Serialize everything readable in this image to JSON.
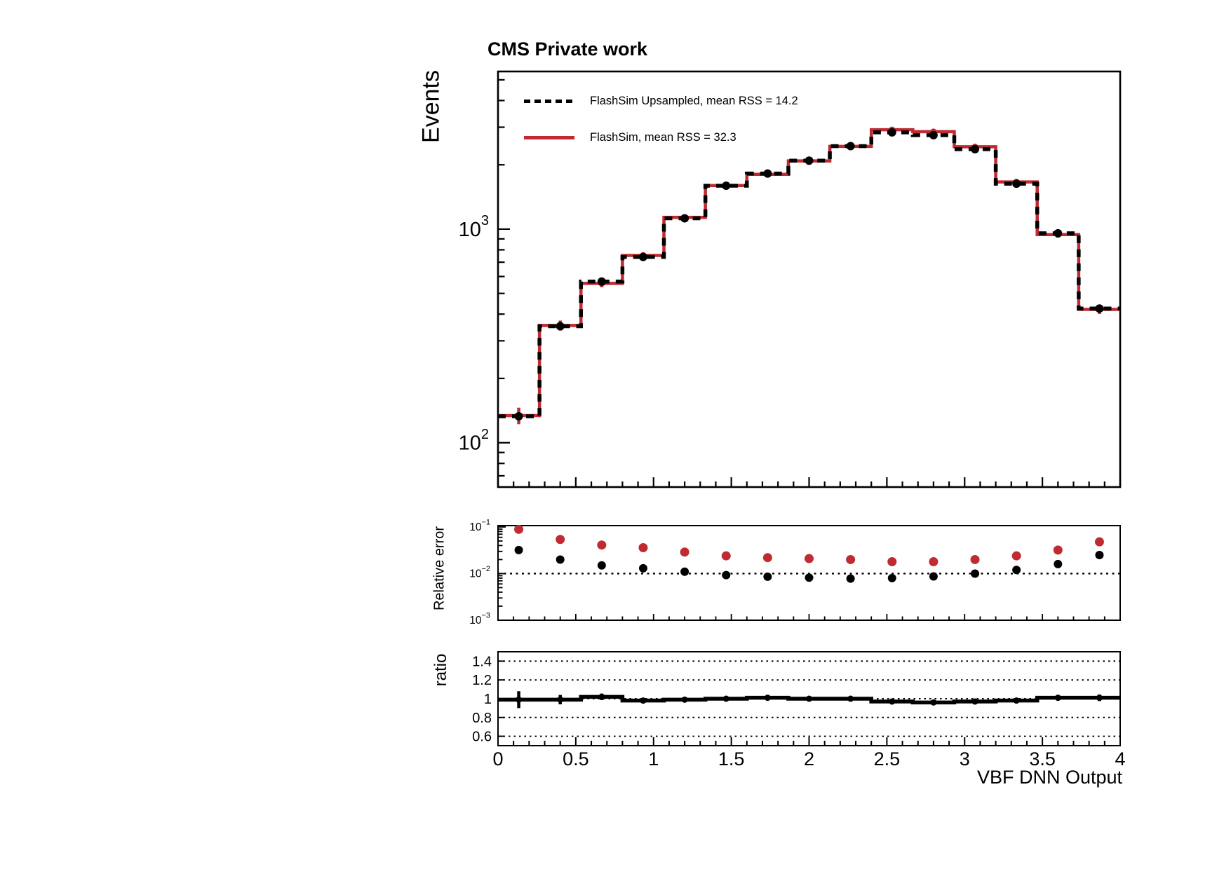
{
  "title": "CMS Private work",
  "colors": {
    "red": "#bf2b31",
    "black": "#000000"
  },
  "legend": {
    "items": [
      {
        "label": "FlashSim Upsampled, mean RSS = 14.2",
        "style": "dashed",
        "color": "#000000"
      },
      {
        "label": "FlashSim, mean RSS = 32.3",
        "style": "solid",
        "color": "#bf2b31"
      }
    ]
  },
  "axis_titles": {
    "main_y": "Events",
    "mid_y": "Relative error",
    "ratio_y": "ratio",
    "x": "VBF DNN Output"
  },
  "x_axis": {
    "min": 0,
    "max": 4,
    "major_ticks": [
      0,
      0.5,
      1,
      1.5,
      2,
      2.5,
      3,
      3.5,
      4
    ],
    "major_labels": [
      "0",
      "0.5",
      "1",
      "1.5",
      "2",
      "2.5",
      "3",
      "3.5",
      "4"
    ],
    "minor_step": 0.1
  },
  "chart_data": [
    {
      "type": "line",
      "title": "CMS Private work",
      "ylabel": "Events",
      "yscale": "log",
      "ylim": [
        62,
        5470
      ],
      "xlim": [
        0,
        4
      ],
      "n_bins": 15,
      "bin_centers": [
        0.1333,
        0.4,
        0.6667,
        0.9333,
        1.2,
        1.4667,
        1.7333,
        2.0,
        2.2667,
        2.5333,
        2.8,
        3.0667,
        3.3333,
        3.6,
        3.8667
      ],
      "y_labeled_exponents": [
        2,
        3
      ],
      "legend_position": "top-left-inside",
      "grid": false,
      "series": [
        {
          "name": "FlashSim, mean RSS = 32.3",
          "color": "#bf2b31",
          "line": "solid",
          "values": [
            134,
            354,
            557,
            753,
            1135,
            1600,
            1805,
            2085,
            2440,
            2920,
            2860,
            2430,
            1663,
            943,
            421
          ],
          "rel_err": [
            0.089,
            0.054,
            0.041,
            0.036,
            0.029,
            0.024,
            0.022,
            0.021,
            0.02,
            0.018,
            0.018,
            0.02,
            0.024,
            0.032,
            0.048
          ]
        },
        {
          "name": "FlashSim Upsampled, mean RSS = 14.2",
          "color": "#000000",
          "line": "dashed",
          "values": [
            133,
            351,
            568,
            741,
            1124,
            1597,
            1820,
            2092,
            2447,
            2838,
            2752,
            2368,
            1632,
            956,
            425
          ],
          "rel_err": [
            0.032,
            0.02,
            0.015,
            0.013,
            0.011,
            0.0093,
            0.0086,
            0.0082,
            0.0078,
            0.008,
            0.0087,
            0.01,
            0.012,
            0.016,
            0.025
          ]
        }
      ]
    },
    {
      "type": "scatter",
      "ylabel": "Relative error",
      "yscale": "log",
      "ylim": [
        0.001,
        0.107
      ],
      "xlim": [
        0,
        4
      ],
      "y_labeled_exponents": [
        -1,
        -2,
        -3
      ],
      "dotted_line_y": 0.01,
      "series": [
        {
          "name": "FlashSim",
          "color": "#bf2b31",
          "values": [
            0.089,
            0.054,
            0.041,
            0.036,
            0.029,
            0.024,
            0.022,
            0.021,
            0.02,
            0.018,
            0.018,
            0.02,
            0.024,
            0.032,
            0.048
          ]
        },
        {
          "name": "FlashSim Upsampled",
          "color": "#000000",
          "values": [
            0.032,
            0.02,
            0.015,
            0.013,
            0.011,
            0.0093,
            0.0086,
            0.0082,
            0.0078,
            0.008,
            0.0087,
            0.01,
            0.012,
            0.016,
            0.025
          ]
        }
      ]
    },
    {
      "type": "line",
      "ylabel": "ratio",
      "xlabel": "VBF DNN Output",
      "yscale": "linear",
      "ylim": [
        0.5,
        1.5
      ],
      "xlim": [
        0,
        4
      ],
      "gridlines": [
        0.6,
        0.8,
        1.0,
        1.2,
        1.4
      ],
      "y_ticks": [
        0.6,
        0.8,
        1,
        1.2,
        1.4
      ],
      "y_tick_labels": [
        "0.6",
        "0.8",
        "1",
        "1.2",
        "1.4"
      ],
      "values": [
        0.99,
        0.99,
        1.02,
        0.98,
        0.99,
        1.0,
        1.01,
        1.0,
        1.0,
        0.97,
        0.96,
        0.97,
        0.98,
        1.01,
        1.01
      ],
      "errors": [
        0.09,
        0.05,
        0.035,
        0.03,
        0.025,
        0.02,
        0.018,
        0.015,
        0.013,
        0.012,
        0.012,
        0.013,
        0.016,
        0.024,
        0.035
      ]
    }
  ]
}
